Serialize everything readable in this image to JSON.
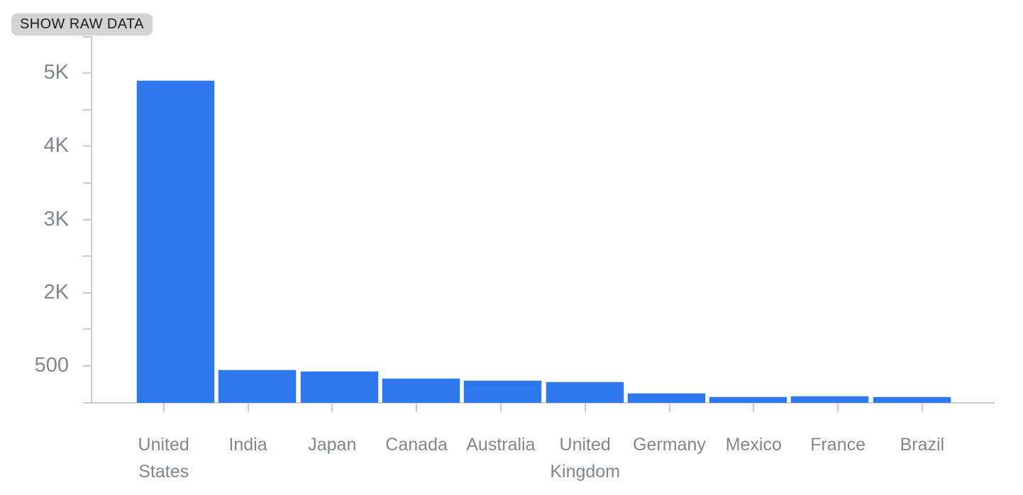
{
  "toolbar": {
    "show_raw_data_label": "SHOW RAW DATA",
    "chip_bg": "#d4d4d4",
    "chip_text_color": "#1c1c1c"
  },
  "chart_data": {
    "type": "bar",
    "title": "",
    "xlabel": "",
    "ylabel": "",
    "categories": [
      "United States",
      "India",
      "Japan",
      "Canada",
      "Australia",
      "United Kingdom",
      "Germany",
      "Mexico",
      "France",
      "Brazil"
    ],
    "values": [
      4850,
      500,
      480,
      370,
      345,
      320,
      150,
      95,
      105,
      95
    ],
    "y_tick_labels": [
      "5K",
      "4K",
      "3K",
      "2K",
      "500"
    ],
    "ylim": [
      0,
      5500
    ],
    "grid": false,
    "legend_position": "none",
    "bar_color": "#2f77ed",
    "bar_border_color": "#cfdffa",
    "axis_color": "#cacaca",
    "tick_label_color": "#83868c"
  }
}
